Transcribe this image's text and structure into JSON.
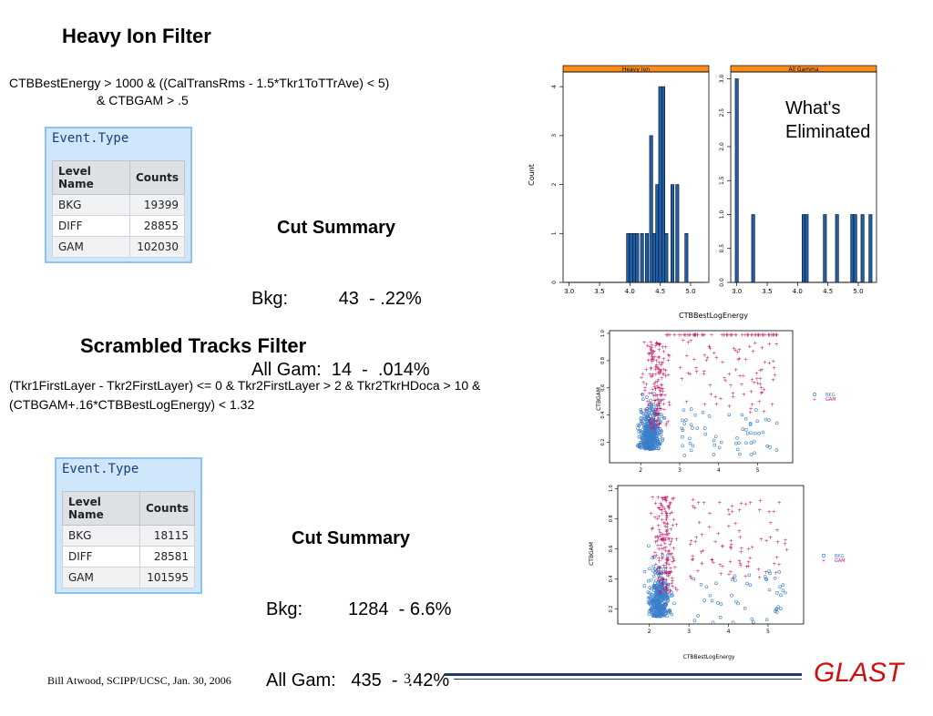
{
  "slide": {
    "page_number": "3",
    "footer": "Bill Atwood,  SCIPP/UCSC, Jan. 30, 2006",
    "logo": "GLAST",
    "colors": {
      "logo": "#cc1111",
      "rule": "#1f3a6e",
      "bar": "#1f5fa8",
      "strip": "#ff8c1a",
      "bkg_marker": "#3a7fc8",
      "gam_marker": "#c4196a"
    }
  },
  "heavy_ion": {
    "title": "Heavy Ion Filter",
    "expr_line1": "CTBBestEnergy > 1000 & ((CalTransRms - 1.5*Tkr1ToTTrAve) < 5)",
    "expr_line2": "& CTBGAM > .5",
    "table": {
      "title": "Event.Type",
      "headers": [
        "Level Name",
        "Counts"
      ],
      "rows": [
        [
          "BKG",
          "19399"
        ],
        [
          "DIFF",
          "28855"
        ],
        [
          "GAM",
          "102030"
        ]
      ]
    },
    "cut_summary": {
      "heading": "Cut Summary",
      "line1": "Bkg:          43  - .22%",
      "line2": "All Gam:  14  -  .014%"
    },
    "note_line1": "What's",
    "note_line2": "Eliminated"
  },
  "scrambled": {
    "title": "Scrambled Tracks Filter",
    "expr_line1": "(Tkr1FirstLayer - Tkr2FirstLayer) <= 0 & Tkr2FirstLayer > 2 & Tkr2TkrHDoca > 10 &",
    "expr_line2": "(CTBGAM+.16*CTBBestLogEnergy) < 1.32",
    "table": {
      "title": "Event.Type",
      "headers": [
        "Level Name",
        "Counts"
      ],
      "rows": [
        [
          "BKG",
          "18115"
        ],
        [
          "DIFF",
          "28581"
        ],
        [
          "GAM",
          "101595"
        ]
      ]
    },
    "cut_summary": {
      "heading": "Cut Summary",
      "line1": "Bkg:         1284  - 6.6%",
      "line2": "All Gam:   435  -  .42%"
    }
  },
  "chart_data": [
    {
      "type": "bar",
      "panel": "Heavy Ion",
      "ylabel": "Count",
      "xlim": [
        2.9,
        5.3
      ],
      "ylim": [
        0,
        4.3
      ],
      "xticks": [
        "3.0",
        "3.5",
        "4.0",
        "4.5",
        "5.0"
      ],
      "yticks": [
        "0",
        "1",
        "2",
        "3",
        "4"
      ],
      "x": [
        3.97,
        4.02,
        4.07,
        4.12,
        4.2,
        4.28,
        4.35,
        4.4,
        4.45,
        4.5,
        4.55,
        4.6,
        4.7,
        4.78,
        4.93
      ],
      "values": [
        1,
        1,
        1,
        1,
        1,
        1,
        3,
        1,
        2,
        4,
        4,
        1,
        2,
        2,
        1
      ]
    },
    {
      "type": "bar",
      "panel": "All Gamma",
      "xlim": [
        2.9,
        5.3
      ],
      "ylim": [
        0,
        3.1
      ],
      "xticks": [
        "3.0",
        "3.5",
        "4.0",
        "4.5",
        "5.0"
      ],
      "yticks": [
        "0.0",
        "0.5",
        "1.0",
        "1.5",
        "2.0",
        "2.5",
        "3.0"
      ],
      "x": [
        3.0,
        3.27,
        4.1,
        4.15,
        4.45,
        4.65,
        4.9,
        4.95,
        5.07,
        5.2
      ],
      "values": [
        3,
        1,
        1,
        1,
        1,
        1,
        1,
        1,
        1,
        1
      ]
    },
    {
      "type": "scatter",
      "panel": "upper",
      "ylabel": "CTBGAM",
      "xlim": [
        1.2,
        5.9
      ],
      "ylim": [
        0.05,
        1.02
      ],
      "xticks": [
        "2",
        "3",
        "4",
        "5"
      ],
      "yticks": [
        "0.2",
        "0.4",
        "0.6",
        "0.8",
        "1.0"
      ],
      "series": [
        {
          "name": "BKG"
        },
        {
          "name": "GAM"
        }
      ]
    },
    {
      "type": "scatter",
      "panel": "lower",
      "xlabel": "CTBBestLogEnergy",
      "ylabel": "CTBGAM",
      "xlim": [
        1.2,
        5.9
      ],
      "ylim": [
        0.1,
        1.02
      ],
      "xticks": [
        "2",
        "3",
        "4",
        "5"
      ],
      "yticks": [
        "0.2",
        "0.4",
        "0.6",
        "0.8",
        "1.0"
      ],
      "series": [
        {
          "name": "BKG"
        },
        {
          "name": "GAM"
        }
      ]
    }
  ],
  "shared_xlabel": "CTBBestLogEnergy"
}
